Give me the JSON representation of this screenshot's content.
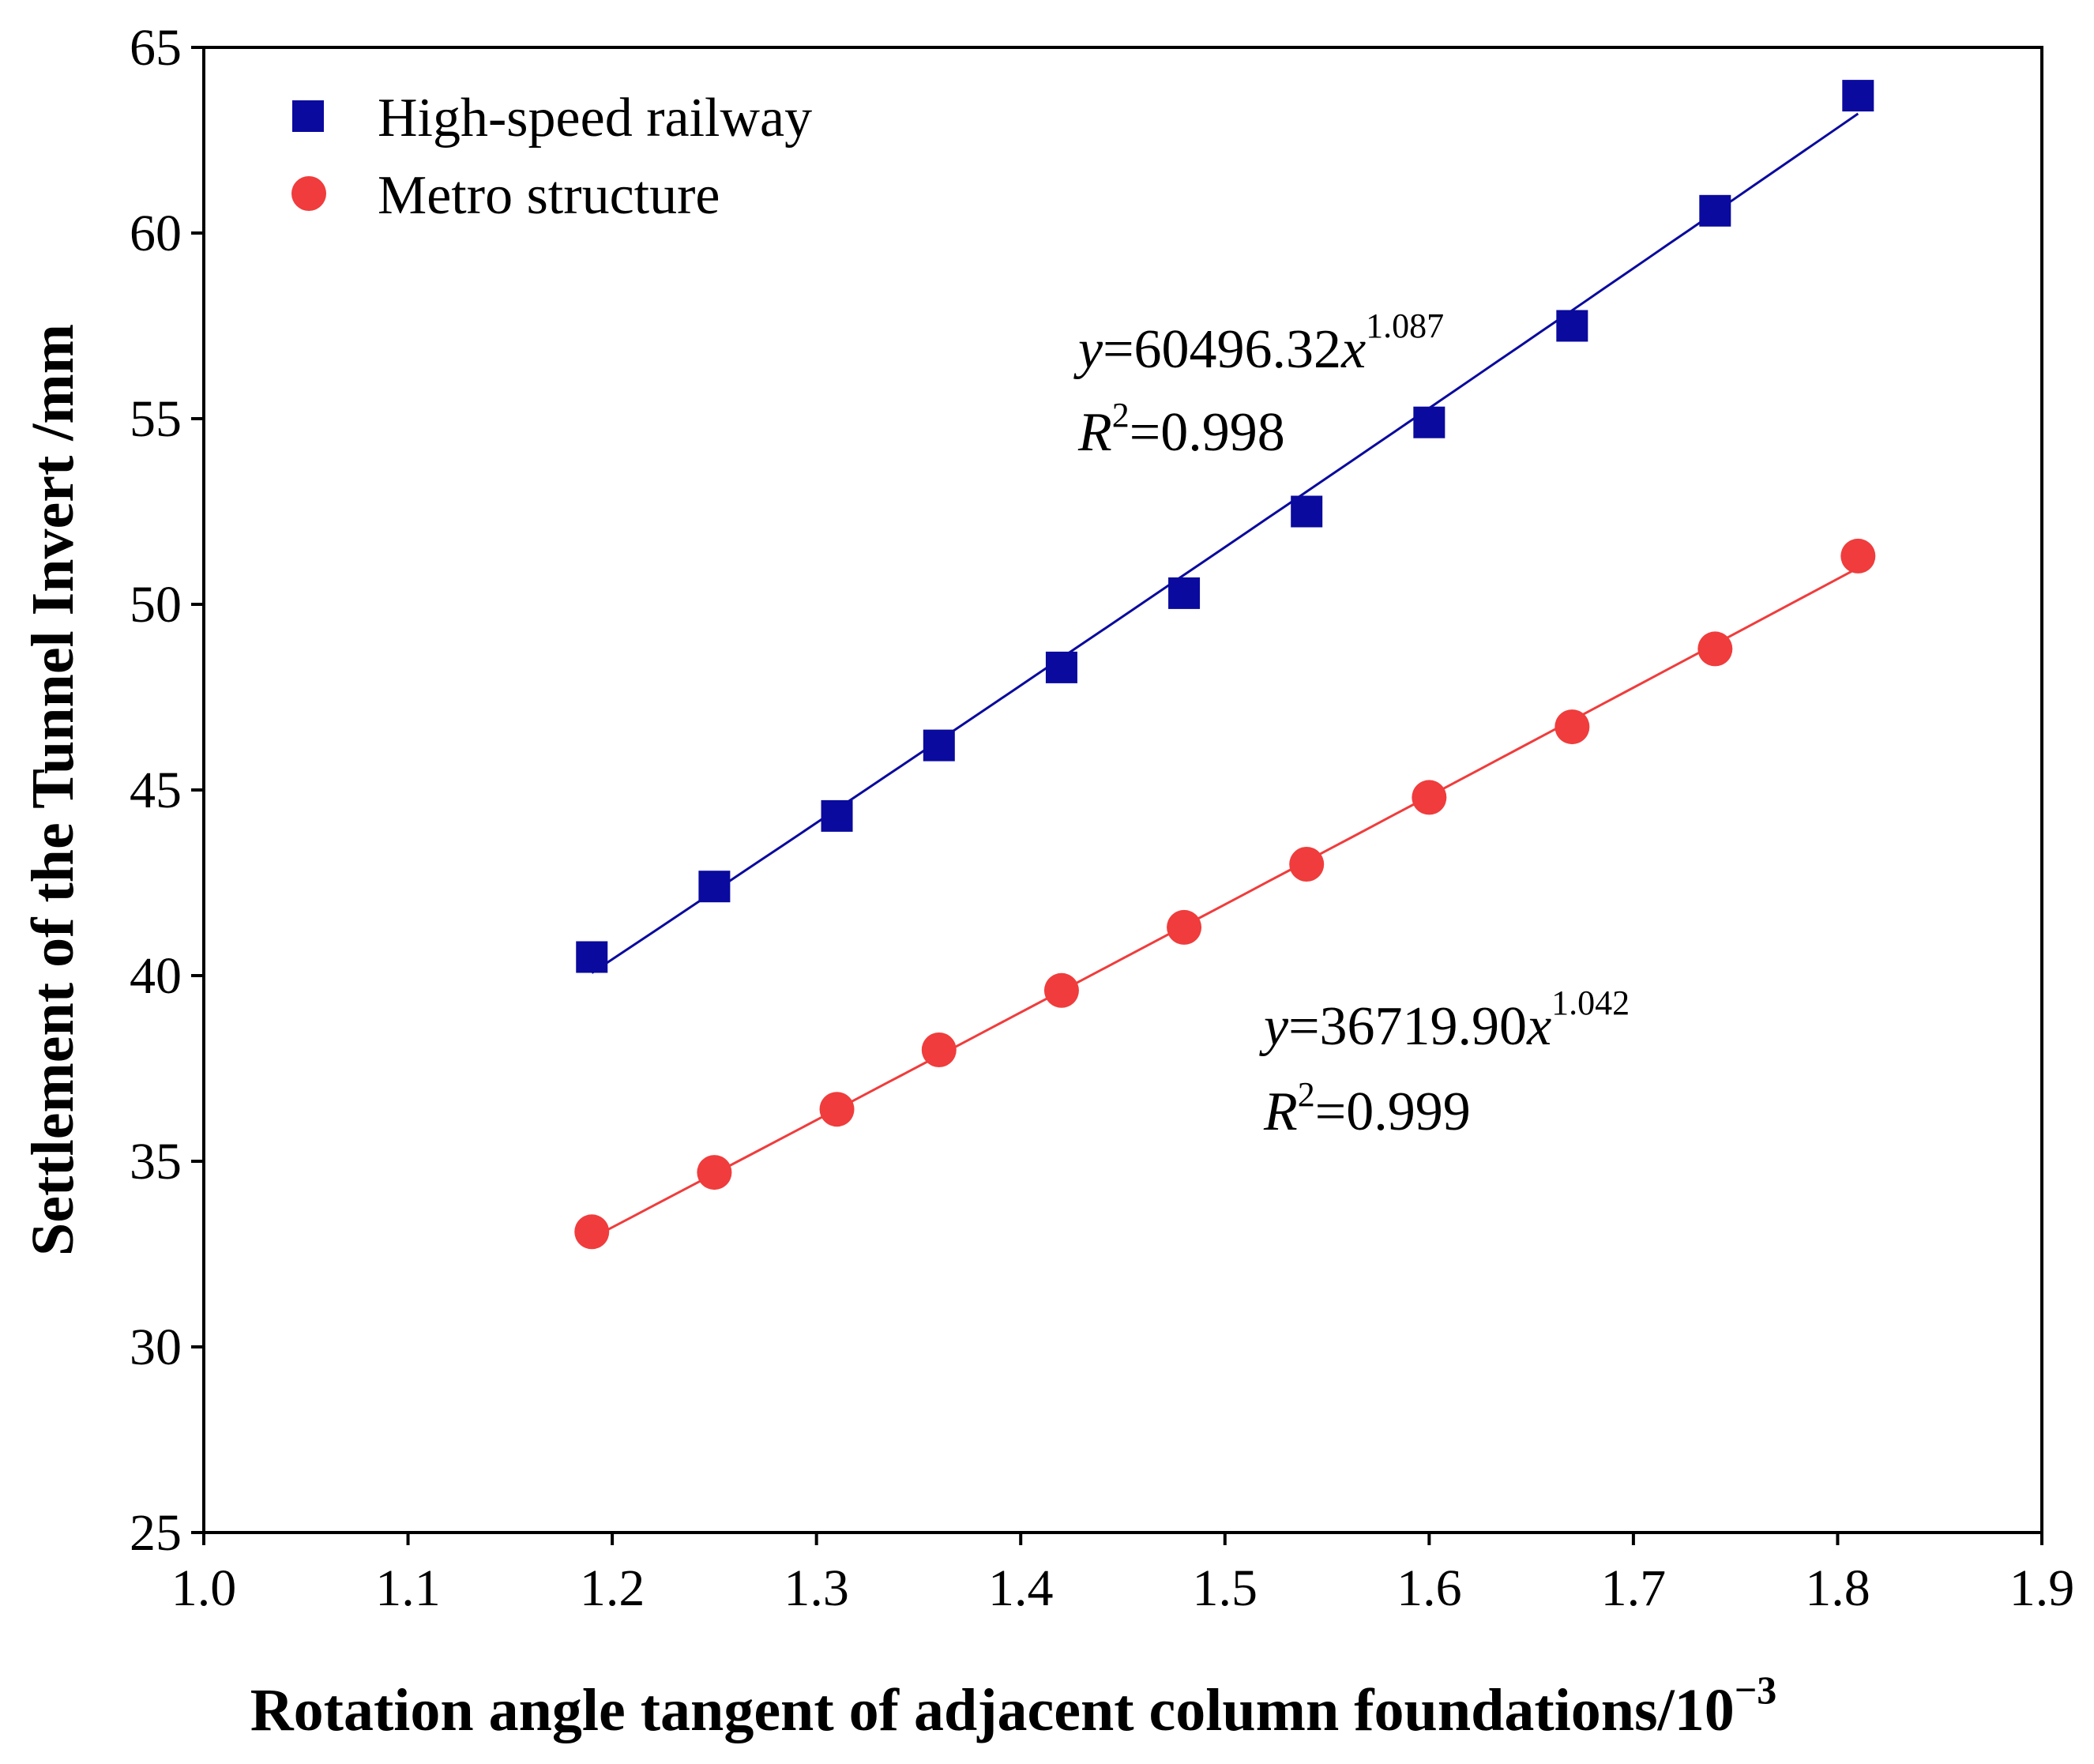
{
  "chart_data": {
    "type": "scatter",
    "xlabel": "Rotation angle tangent of adjacent column foundations/10",
    "xlabel_sup": "−3",
    "ylabel": "Settlement of the Tunnel Invert /mm",
    "xlim": [
      1.0,
      1.9
    ],
    "ylim": [
      25,
      65
    ],
    "xticks": [
      "1.0",
      "1.1",
      "1.2",
      "1.3",
      "1.4",
      "1.5",
      "1.6",
      "1.7",
      "1.8",
      "1.9"
    ],
    "yticks": [
      "25",
      "30",
      "35",
      "40",
      "45",
      "50",
      "55",
      "60",
      "65"
    ],
    "legend_position": "top-left",
    "series": [
      {
        "name": "High-speed railway",
        "marker": "square",
        "color": "#0a0a9e",
        "x": [
          1.19,
          1.25,
          1.31,
          1.36,
          1.42,
          1.48,
          1.54,
          1.6,
          1.67,
          1.74,
          1.81
        ],
        "y": [
          40.5,
          42.4,
          44.3,
          46.2,
          48.3,
          50.3,
          52.5,
          54.9,
          57.5,
          60.6,
          63.7
        ],
        "fit": {
          "coef": 60496.32,
          "exp": 1.087,
          "x_from": 1.19,
          "x_to": 1.81
        },
        "equation": {
          "y_var": "y",
          "eq_mid": "=60496.32",
          "x_var": "x",
          "exponent": "1.087",
          "r_var": "R",
          "r_sup": "2",
          "r_val": "=0.998"
        }
      },
      {
        "name": "Metro structure",
        "marker": "circle",
        "color": "#f03c3c",
        "x": [
          1.19,
          1.25,
          1.31,
          1.36,
          1.42,
          1.48,
          1.54,
          1.6,
          1.67,
          1.74,
          1.81
        ],
        "y": [
          33.1,
          34.7,
          36.4,
          38.0,
          39.6,
          41.3,
          43.0,
          44.8,
          46.7,
          48.8,
          51.3
        ],
        "fit": {
          "coef": 36719.9,
          "exp": 1.042,
          "x_from": 1.19,
          "x_to": 1.81
        },
        "equation": {
          "y_var": "y",
          "eq_mid": "=36719.90",
          "x_var": "x",
          "exponent": "1.042",
          "r_var": "R",
          "r_sup": "2",
          "r_val": "=0.999"
        }
      }
    ]
  }
}
